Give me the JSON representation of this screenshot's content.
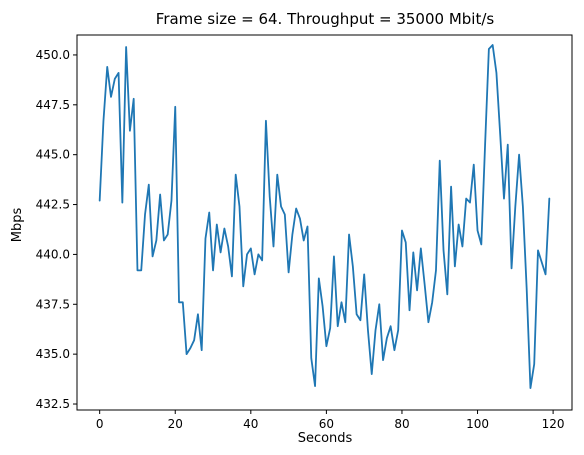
{
  "chart_data": {
    "type": "line",
    "title": "Frame size = 64. Throughput = 35000 Mbit/s",
    "xlabel": "Seconds",
    "ylabel": "Mbps",
    "xlim": [
      -6,
      125
    ],
    "ylim": [
      432.2,
      451.0
    ],
    "xticks": [
      0,
      20,
      40,
      60,
      80,
      100,
      120
    ],
    "yticks": [
      432.5,
      435.0,
      437.5,
      440.0,
      442.5,
      445.0,
      447.5,
      450.0
    ],
    "ytick_labels": [
      "432.5",
      "435.0",
      "437.5",
      "440.0",
      "442.5",
      "445.0",
      "447.5",
      "450.0"
    ],
    "grid": false,
    "legend": "none",
    "series": [
      {
        "color": "#1f77b4",
        "x": [
          0,
          1,
          2,
          3,
          4,
          5,
          6,
          7,
          8,
          9,
          10,
          11,
          12,
          13,
          14,
          15,
          16,
          17,
          18,
          19,
          20,
          21,
          22,
          23,
          24,
          25,
          26,
          27,
          28,
          29,
          30,
          31,
          32,
          33,
          34,
          35,
          36,
          37,
          38,
          39,
          40,
          41,
          42,
          43,
          44,
          45,
          46,
          47,
          48,
          49,
          50,
          51,
          52,
          53,
          54,
          55,
          56,
          57,
          58,
          59,
          60,
          61,
          62,
          63,
          64,
          65,
          66,
          67,
          68,
          69,
          70,
          71,
          72,
          73,
          74,
          75,
          76,
          77,
          78,
          79,
          80,
          81,
          82,
          83,
          84,
          85,
          86,
          87,
          88,
          89,
          90,
          91,
          92,
          93,
          94,
          95,
          96,
          97,
          98,
          99,
          100,
          101,
          102,
          103,
          104,
          105,
          106,
          107,
          108,
          109,
          110,
          111,
          112,
          113,
          114,
          115,
          116,
          117,
          118,
          119
        ],
        "values": [
          442.7,
          446.7,
          449.4,
          447.9,
          448.8,
          449.1,
          442.6,
          450.4,
          446.2,
          447.8,
          439.2,
          439.2,
          442.0,
          443.5,
          439.9,
          440.7,
          443.0,
          440.7,
          441.0,
          442.7,
          447.4,
          437.6,
          437.6,
          435.0,
          435.3,
          435.7,
          437.0,
          435.2,
          440.8,
          442.1,
          439.2,
          441.5,
          440.1,
          441.3,
          440.4,
          438.9,
          444.0,
          442.4,
          438.4,
          440.0,
          440.3,
          439.0,
          440.0,
          439.7,
          446.7,
          442.9,
          440.4,
          444.0,
          442.4,
          442.0,
          439.1,
          441.0,
          442.3,
          441.8,
          440.7,
          441.4,
          434.8,
          433.4,
          438.8,
          437.4,
          435.4,
          436.3,
          439.9,
          436.4,
          437.6,
          436.6,
          441.0,
          439.4,
          437.0,
          436.7,
          439.0,
          436.2,
          434.0,
          436.2,
          437.5,
          434.7,
          435.8,
          436.4,
          435.2,
          436.2,
          441.2,
          440.6,
          437.2,
          440.1,
          438.2,
          440.3,
          438.5,
          436.6,
          437.6,
          439.2,
          444.7,
          440.2,
          438.0,
          443.4,
          439.4,
          441.5,
          440.4,
          442.8,
          442.6,
          444.5,
          441.2,
          440.5,
          445.5,
          450.3,
          450.5,
          449.1,
          446.0,
          442.8,
          445.5,
          439.3,
          442.4,
          445.0,
          442.4,
          438.3,
          433.3,
          434.5,
          440.2,
          439.6,
          439.0,
          442.8
        ]
      }
    ]
  }
}
